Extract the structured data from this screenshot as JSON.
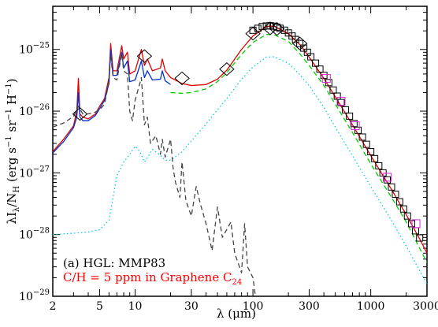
{
  "chart_data": {
    "type": "line",
    "xscale": "log",
    "yscale": "log",
    "xlim": [
      2,
      3000
    ],
    "ylim": [
      1e-29,
      5e-25
    ],
    "x_ticks": [
      {
        "value": 2,
        "label": "2"
      },
      {
        "value": 5,
        "label": "5"
      },
      {
        "value": 10,
        "label": "10"
      },
      {
        "value": 30,
        "label": "30"
      },
      {
        "value": 100,
        "label": "100"
      },
      {
        "value": 300,
        "label": "300"
      },
      {
        "value": 1000,
        "label": "1000"
      },
      {
        "value": 3000,
        "label": "3000"
      }
    ],
    "y_ticks": [
      {
        "value": 1e-29,
        "mant": "10",
        "exp": "−29"
      },
      {
        "value": 1e-28,
        "mant": "10",
        "exp": "−28"
      },
      {
        "value": 1e-27,
        "mant": "10",
        "exp": "−27"
      },
      {
        "value": 1e-26,
        "mant": "10",
        "exp": "−26"
      },
      {
        "value": 1e-25,
        "mant": "10",
        "exp": "−25"
      }
    ],
    "xlabel": "λ (μm)",
    "ylabel": "λI_λ/N_H (erg s^-1 sr^-1 H^-1)",
    "annotations": [
      {
        "text": "(a) HGL: MMP83",
        "color": "#000000"
      },
      {
        "text": "C/H = 5 ppm in Graphene C24",
        "color": "#ff0000"
      }
    ],
    "series": [
      {
        "style": "solid",
        "color": "#e00000",
        "points": [
          [
            2,
            2.2e-27
          ],
          [
            2.5,
            3.6e-27
          ],
          [
            3,
            5.8e-27
          ],
          [
            3.2,
            1e-26
          ],
          [
            3.3,
            3.4e-26
          ],
          [
            3.4,
            9e-27
          ],
          [
            3.6,
            8e-27
          ],
          [
            4,
            7.5e-27
          ],
          [
            4.6,
            9e-27
          ],
          [
            5,
            1.2e-26
          ],
          [
            5.5,
            1.6e-26
          ],
          [
            6,
            3.5e-26
          ],
          [
            6.2,
            1.25e-25
          ],
          [
            6.5,
            4.5e-26
          ],
          [
            7,
            4.5e-26
          ],
          [
            7.7,
            1.15e-25
          ],
          [
            8,
            7e-26
          ],
          [
            8.6,
            9e-26
          ],
          [
            9,
            4e-26
          ],
          [
            10,
            4.5e-26
          ],
          [
            11.3,
            1e-25
          ],
          [
            12,
            5.5e-26
          ],
          [
            12.7,
            7e-26
          ],
          [
            14,
            4.5e-26
          ],
          [
            16.4,
            5e-26
          ],
          [
            17,
            7e-26
          ],
          [
            18,
            4.5e-26
          ],
          [
            20,
            3.5e-26
          ],
          [
            25,
            2.8e-26
          ],
          [
            30,
            2.6e-26
          ],
          [
            40,
            2.7e-26
          ],
          [
            50,
            3.3e-26
          ],
          [
            60,
            4.6e-26
          ],
          [
            80,
            1e-25
          ],
          [
            100,
            1.65e-25
          ],
          [
            130,
            2.35e-25
          ],
          [
            150,
            2.4e-25
          ],
          [
            200,
            1.8e-25
          ],
          [
            250,
            1.2e-25
          ],
          [
            300,
            7.5e-26
          ],
          [
            400,
            3.4e-26
          ],
          [
            500,
            1.7e-26
          ],
          [
            700,
            6e-27
          ],
          [
            1000,
            1.9e-27
          ],
          [
            1500,
            5.4e-28
          ],
          [
            2000,
            2.1e-28
          ],
          [
            2600,
            8.5e-29
          ],
          [
            3000,
            5e-29
          ]
        ]
      },
      {
        "style": "solid",
        "color": "#0033cc",
        "points": [
          [
            2,
            2.1e-27
          ],
          [
            2.5,
            3.3e-27
          ],
          [
            3,
            5.4e-27
          ],
          [
            3.2,
            8e-27
          ],
          [
            3.3,
            2e-26
          ],
          [
            3.4,
            8e-27
          ],
          [
            3.6,
            7e-27
          ],
          [
            4,
            7e-27
          ],
          [
            4.6,
            8.5e-27
          ],
          [
            5,
            1.1e-26
          ],
          [
            5.5,
            1.5e-26
          ],
          [
            6,
            2.8e-26
          ],
          [
            6.2,
            1e-25
          ],
          [
            6.5,
            3.8e-26
          ],
          [
            7,
            3.8e-26
          ],
          [
            7.7,
            9e-26
          ],
          [
            8,
            5e-26
          ],
          [
            8.6,
            6.5e-26
          ],
          [
            9,
            3e-26
          ],
          [
            10,
            3.2e-26
          ],
          [
            11.3,
            6.5e-26
          ],
          [
            12,
            3.5e-26
          ],
          [
            12.7,
            4.5e-26
          ],
          [
            14,
            3.2e-26
          ],
          [
            16.4,
            3.3e-26
          ],
          [
            17,
            4.5e-26
          ],
          [
            18,
            3.1e-26
          ],
          [
            20,
            2.7e-26
          ]
        ]
      },
      {
        "style": "dashed",
        "color": "#00cc00",
        "points": [
          [
            20,
            2e-26
          ],
          [
            25,
            1.95e-26
          ],
          [
            30,
            2e-26
          ],
          [
            40,
            2.3e-26
          ],
          [
            50,
            3e-26
          ],
          [
            60,
            4.2e-26
          ],
          [
            80,
            8.3e-26
          ],
          [
            100,
            1.3e-25
          ],
          [
            130,
            1.75e-25
          ],
          [
            150,
            1.75e-25
          ],
          [
            200,
            1.35e-25
          ],
          [
            250,
            8.5e-26
          ],
          [
            300,
            5.5e-26
          ],
          [
            400,
            2.6e-26
          ],
          [
            500,
            1.3e-26
          ],
          [
            700,
            4.5e-27
          ],
          [
            1000,
            1.4e-27
          ],
          [
            1500,
            4e-28
          ],
          [
            2000,
            1.6e-28
          ],
          [
            2600,
            6e-29
          ],
          [
            3000,
            3.5e-29
          ]
        ]
      },
      {
        "style": "dotted",
        "color": "#00ccee",
        "points": [
          [
            2,
            1e-28
          ],
          [
            3,
            1.05e-28
          ],
          [
            4,
            1.1e-28
          ],
          [
            5,
            1.2e-28
          ],
          [
            6,
            1.7e-28
          ],
          [
            7,
            9e-28
          ],
          [
            8,
            1.5e-27
          ],
          [
            9,
            2e-27
          ],
          [
            10,
            2.7e-27
          ],
          [
            11,
            2.2e-27
          ],
          [
            12,
            1.5e-27
          ],
          [
            13,
            1.9e-27
          ],
          [
            14,
            2.4e-27
          ],
          [
            16,
            2e-27
          ],
          [
            18,
            1.6e-27
          ],
          [
            20,
            1.6e-27
          ],
          [
            25,
            2.2e-27
          ],
          [
            30,
            3.3e-27
          ],
          [
            40,
            6.2e-27
          ],
          [
            50,
            1.05e-26
          ],
          [
            60,
            1.6e-26
          ],
          [
            80,
            3.3e-26
          ],
          [
            100,
            5.2e-26
          ],
          [
            130,
            7.5e-26
          ],
          [
            150,
            7.6e-26
          ],
          [
            200,
            6e-26
          ],
          [
            250,
            3.9e-26
          ],
          [
            300,
            2.6e-26
          ],
          [
            400,
            1.15e-26
          ],
          [
            500,
            5.5e-27
          ],
          [
            700,
            1.9e-27
          ],
          [
            1000,
            6e-28
          ],
          [
            1500,
            1.7e-28
          ],
          [
            2000,
            6.5e-29
          ],
          [
            2600,
            2.6e-29
          ],
          [
            3000,
            1.6e-29
          ]
        ]
      },
      {
        "style": "dashed",
        "color": "#444444",
        "points": [
          [
            2,
            5.5e-27
          ],
          [
            2.5,
            6.5e-27
          ],
          [
            3,
            8.2e-27
          ],
          [
            3.3,
            1.2e-26
          ],
          [
            3.6,
            9e-27
          ],
          [
            4,
            9e-27
          ],
          [
            4.5,
            9.5e-27
          ],
          [
            5,
            1.05e-26
          ],
          [
            5.5,
            1.3e-26
          ],
          [
            6,
            3e-26
          ],
          [
            6.2,
            8e-26
          ],
          [
            6.5,
            3.5e-26
          ],
          [
            7,
            3.2e-26
          ],
          [
            7.7,
            8.5e-26
          ],
          [
            8,
            4.5e-26
          ],
          [
            8.6,
            4e-26
          ],
          [
            9,
            1e-26
          ],
          [
            9.5,
            7e-27
          ],
          [
            10,
            1.5e-26
          ],
          [
            11.3,
            3.5e-26
          ],
          [
            12,
            6e-27
          ],
          [
            12.7,
            8e-27
          ],
          [
            13.5,
            3e-27
          ],
          [
            15,
            4e-27
          ],
          [
            16.4,
            2e-27
          ],
          [
            17,
            3.5e-27
          ],
          [
            18,
            1.8e-27
          ],
          [
            20,
            3.5e-27
          ],
          [
            21,
            1.2e-27
          ],
          [
            22,
            7e-28
          ],
          [
            24,
            4e-28
          ],
          [
            25,
            1.5e-27
          ],
          [
            27,
            3.5e-28
          ],
          [
            30,
            2e-28
          ],
          [
            33,
            6e-28
          ],
          [
            36,
            3e-28
          ],
          [
            40,
            1.5e-28
          ],
          [
            45,
            5.5e-29
          ],
          [
            50,
            2.8e-28
          ],
          [
            55,
            9e-29
          ],
          [
            65,
            1.6e-28
          ],
          [
            70,
            5e-29
          ],
          [
            80,
            2.4e-29
          ],
          [
            85,
            1.5e-28
          ],
          [
            90,
            3e-29
          ],
          [
            100,
            2e-29
          ],
          [
            105,
            1e-29
          ]
        ]
      }
    ],
    "diamond_points": [
      [
        3.4,
        9e-27
      ],
      [
        12,
        7.8e-26
      ],
      [
        25,
        3.4e-26
      ],
      [
        60,
        4.8e-26
      ],
      [
        100,
        1.8e-25
      ],
      [
        140,
        2.2e-25
      ],
      [
        160,
        2.15e-25
      ],
      [
        250,
        1.25e-25
      ]
    ],
    "square_points_black": [
      [
        100,
        2.05e-25
      ],
      [
        110,
        2.2e-25
      ],
      [
        120,
        2.35e-25
      ],
      [
        130,
        2.4e-25
      ],
      [
        140,
        2.42e-25
      ],
      [
        150,
        2.38e-25
      ],
      [
        160,
        2.3e-25
      ],
      [
        170,
        2.2e-25
      ],
      [
        185,
        2.05e-25
      ],
      [
        200,
        1.85e-25
      ],
      [
        215,
        1.65e-25
      ],
      [
        230,
        1.45e-25
      ],
      [
        250,
        1.25e-25
      ],
      [
        270,
        1.05e-25
      ],
      [
        290,
        9e-26
      ],
      [
        310,
        7.6e-26
      ],
      [
        340,
        6e-26
      ],
      [
        370,
        4.8e-26
      ],
      [
        400,
        3.8e-26
      ],
      [
        440,
        2.9e-26
      ],
      [
        480,
        2.2e-26
      ],
      [
        520,
        1.75e-26
      ],
      [
        560,
        1.38e-26
      ],
      [
        610,
        1.05e-26
      ],
      [
        660,
        8.3e-27
      ],
      [
        720,
        6.3e-27
      ],
      [
        780,
        4.9e-27
      ],
      [
        850,
        3.8e-27
      ],
      [
        920,
        2.9e-27
      ],
      [
        1000,
        2.2e-27
      ],
      [
        1080,
        1.7e-27
      ],
      [
        1170,
        1.3e-27
      ],
      [
        1270,
        1e-27
      ],
      [
        1380,
        7.7e-28
      ],
      [
        1500,
        5.9e-28
      ],
      [
        1620,
        4.5e-28
      ],
      [
        1760,
        3.4e-28
      ],
      [
        1900,
        2.6e-28
      ],
      [
        2050,
        2e-28
      ],
      [
        2220,
        1.5e-28
      ],
      [
        2400,
        1.15e-28
      ],
      [
        2600,
        8.8e-29
      ]
    ],
    "square_points_magenta": [
      [
        420,
        3.4e-26
      ],
      [
        560,
        1.45e-26
      ],
      [
        740,
        5.8e-27
      ],
      [
        1380,
        8.5e-28
      ],
      [
        2420,
        1.5e-28
      ]
    ]
  }
}
